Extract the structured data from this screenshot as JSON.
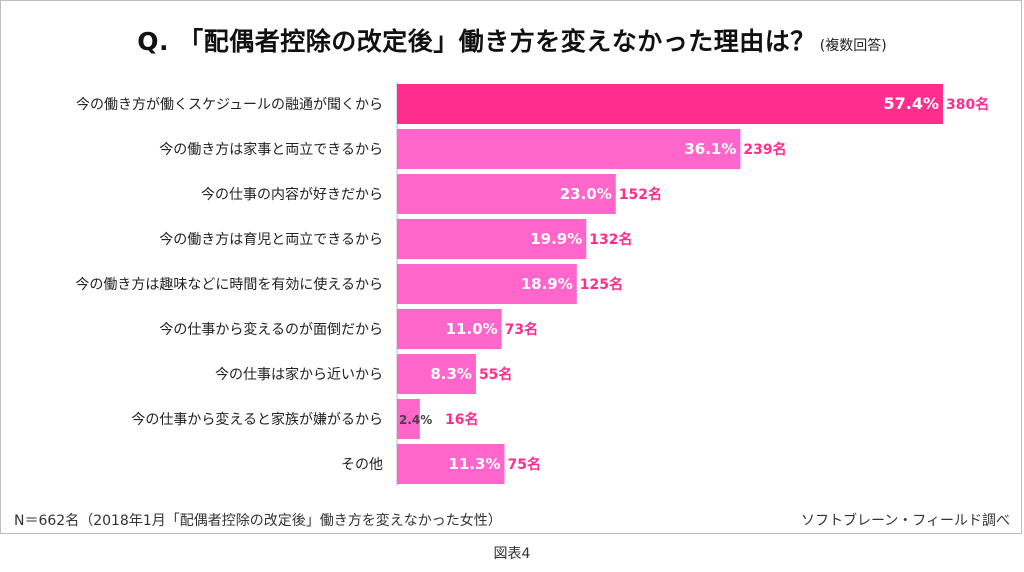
{
  "title": {
    "main": "Q. 「配偶者控除の改定後」働き方を変えなかった理由は？",
    "sub": "(複数回答)"
  },
  "footnote": "N＝662名（2018年1月「配偶者控除の改定後」働き方を変えなかった女性）",
  "source": "ソフトブレーン・フィールド調べ",
  "caption": "図表4",
  "colors": {
    "highlight": "#ff2d8e",
    "bar": "#ff66cc",
    "value_label": "#ff2d8e",
    "small_pct": "#444444"
  },
  "chart_data": {
    "type": "bar",
    "orientation": "horizontal",
    "categories": [
      "今の働き方が働くスケジュールの融通が聞くから",
      "今の働き方は家事と両立できるから",
      "今の仕事の内容が好きだから",
      "今の働き方は育児と両立できるから",
      "今の働き方は趣味などに時間を有効に使えるから",
      "今の仕事から変えるのが面倒だから",
      "今の仕事は家から近いから",
      "今の仕事から変えると家族が嫌がるから",
      "その他"
    ],
    "values": [
      57.4,
      36.1,
      23.0,
      19.9,
      18.9,
      11.0,
      8.3,
      2.4,
      11.3
    ],
    "percent_labels": [
      "57.4%",
      "36.1%",
      "23.0%",
      "19.9%",
      "18.9%",
      "11.0%",
      "8.3%",
      "2.4%",
      "11.3%"
    ],
    "counts": [
      "380名",
      "239名",
      "152名",
      "132名",
      "125名",
      "73名",
      "55名",
      "16名",
      "75名"
    ],
    "xlim": [
      0,
      57.4
    ],
    "highlight_index": 0,
    "grid": false
  }
}
